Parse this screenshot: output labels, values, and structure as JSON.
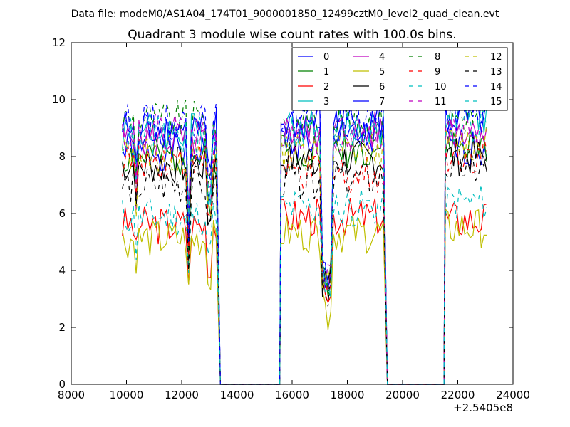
{
  "suptitle": "Data file: modeM0/AS1A04_174T01_9000001850_12499cztM0_level2_quad_clean.evt",
  "chart_data": {
    "type": "line",
    "title": "Quadrant 3 module wise count rates with 100.0s bins.",
    "xlabel": "",
    "ylabel": "",
    "x_offset_label": "+2.5405e8",
    "xlim": [
      8000,
      24000
    ],
    "ylim": [
      0,
      12
    ],
    "xticks": [
      "8000",
      "10000",
      "12000",
      "14000",
      "16000",
      "18000",
      "20000",
      "22000",
      "24000"
    ],
    "yticks": [
      "0",
      "2",
      "4",
      "6",
      "8",
      "10",
      "12"
    ],
    "grid": false,
    "legend_position": "top-right",
    "segments": [
      [
        9850,
        13250
      ],
      [
        15600,
        19300
      ],
      [
        21550,
        23050
      ]
    ],
    "gap_level": 0,
    "series": [
      {
        "name": "0",
        "color": "#0000ff",
        "dash": "solid",
        "levels": [
          8.2,
          8.6,
          8.3
        ],
        "seed": 1
      },
      {
        "name": "1",
        "color": "#008000",
        "dash": "solid",
        "levels": [
          8.0,
          8.3,
          8.4
        ],
        "seed": 2
      },
      {
        "name": "2",
        "color": "#ff0000",
        "dash": "solid",
        "levels": [
          5.6,
          5.9,
          5.8
        ],
        "seed": 3
      },
      {
        "name": "3",
        "color": "#00bfbf",
        "dash": "solid",
        "levels": [
          8.9,
          9.0,
          9.5
        ],
        "seed": 4
      },
      {
        "name": "4",
        "color": "#bf00bf",
        "dash": "solid",
        "levels": [
          8.6,
          8.9,
          9.0
        ],
        "seed": 5
      },
      {
        "name": "5",
        "color": "#bfbf00",
        "dash": "solid",
        "levels": [
          5.1,
          5.3,
          5.5
        ],
        "seed": 6
      },
      {
        "name": "6",
        "color": "#000000",
        "dash": "solid",
        "levels": [
          7.7,
          7.9,
          8.0
        ],
        "seed": 7
      },
      {
        "name": "7",
        "color": "#0000ff",
        "dash": "solid",
        "levels": [
          9.0,
          9.2,
          9.3
        ],
        "seed": 8
      },
      {
        "name": "8",
        "color": "#008000",
        "dash": "dashed",
        "levels": [
          9.3,
          9.2,
          9.4
        ],
        "seed": 9
      },
      {
        "name": "9",
        "color": "#ff0000",
        "dash": "dashed",
        "levels": [
          7.9,
          7.4,
          8.1
        ],
        "seed": 10
      },
      {
        "name": "10",
        "color": "#00bfbf",
        "dash": "dashed",
        "levels": [
          5.9,
          6.2,
          6.4
        ],
        "seed": 11
      },
      {
        "name": "11",
        "color": "#bf00bf",
        "dash": "dashed",
        "levels": [
          8.8,
          8.7,
          9.0
        ],
        "seed": 12
      },
      {
        "name": "12",
        "color": "#bfbf00",
        "dash": "dashed",
        "levels": [
          8.1,
          8.2,
          8.5
        ],
        "seed": 13
      },
      {
        "name": "13",
        "color": "#000000",
        "dash": "dashed",
        "levels": [
          7.0,
          7.2,
          7.6
        ],
        "seed": 14
      },
      {
        "name": "14",
        "color": "#0000ff",
        "dash": "dashed",
        "levels": [
          9.2,
          9.4,
          9.5
        ],
        "seed": 15
      },
      {
        "name": "15",
        "color": "#00bfbf",
        "dash": "dashed",
        "levels": [
          8.7,
          8.9,
          9.1
        ],
        "seed": 16
      }
    ]
  }
}
